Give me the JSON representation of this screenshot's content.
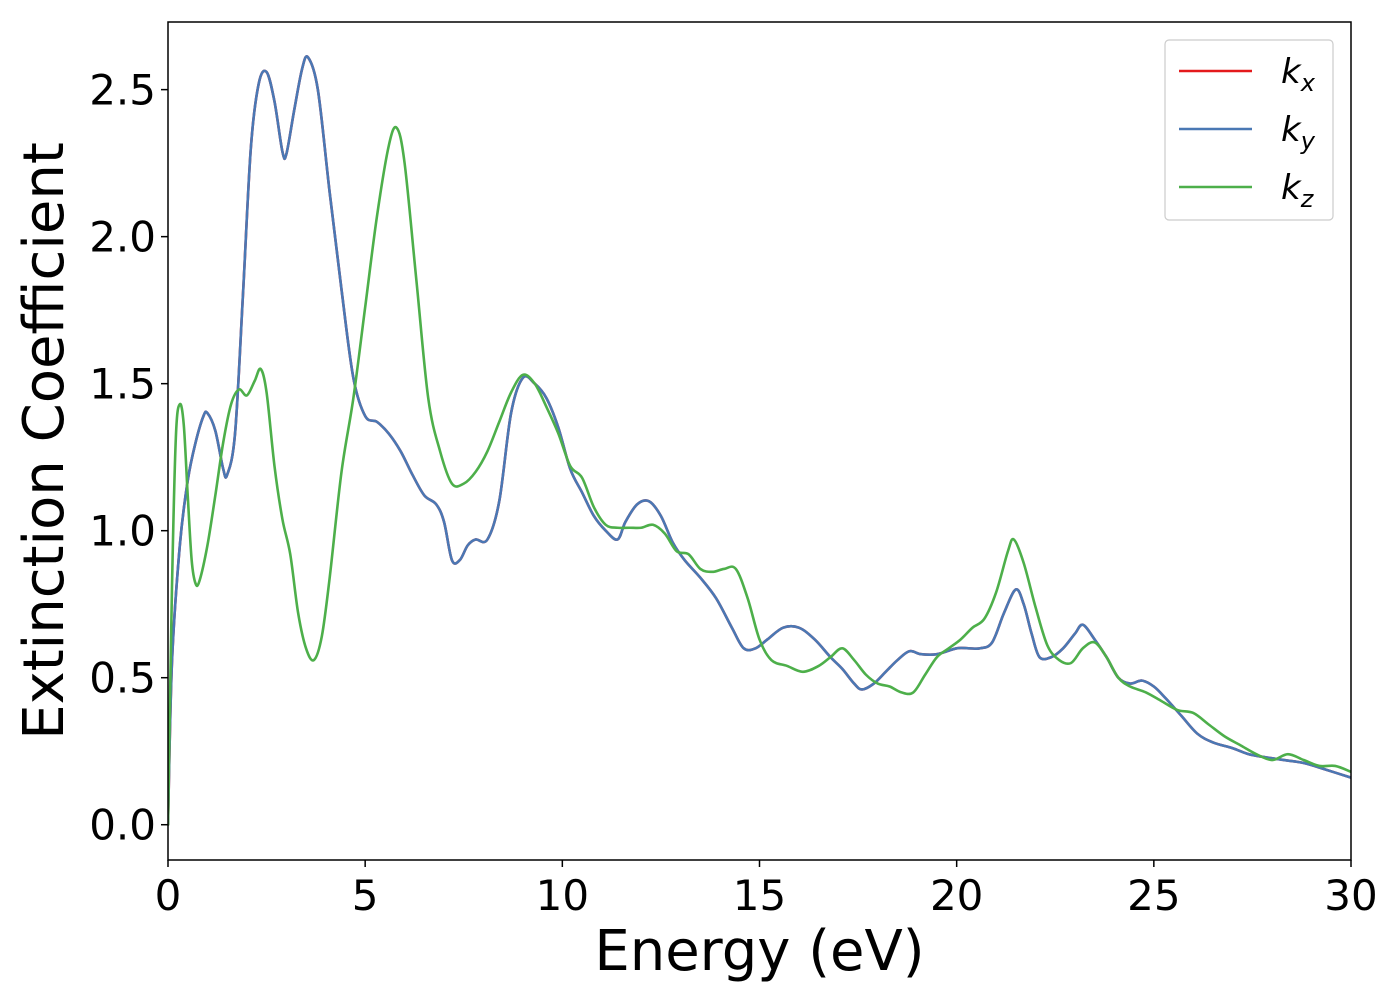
{
  "chart_data": {
    "type": "line",
    "title": "",
    "xlabel": "Energy (eV)",
    "ylabel": "Extinction Coefficient",
    "xlim": [
      0,
      30
    ],
    "ylim": [
      -0.12,
      2.73
    ],
    "xticks": [
      0,
      5,
      10,
      15,
      20,
      25,
      30
    ],
    "xtick_labels": [
      "0",
      "5",
      "10",
      "15",
      "20",
      "25",
      "30"
    ],
    "yticks": [
      0.0,
      0.5,
      1.0,
      1.5,
      2.0,
      2.5
    ],
    "ytick_labels": [
      "0.0",
      "0.5",
      "1.0",
      "1.5",
      "2.0",
      "2.5"
    ],
    "grid": false,
    "legend_position": "top-right",
    "series": [
      {
        "name": "k_x",
        "legend_base": "k",
        "legend_sub": "x",
        "color": "#e41a1c",
        "points": [
          [
            0,
            0
          ],
          [
            0.1,
            0.55
          ],
          [
            0.3,
            0.95
          ],
          [
            0.5,
            1.17
          ],
          [
            0.7,
            1.3
          ],
          [
            0.9,
            1.39
          ],
          [
            1.0,
            1.4
          ],
          [
            1.2,
            1.34
          ],
          [
            1.4,
            1.21
          ],
          [
            1.5,
            1.19
          ],
          [
            1.7,
            1.33
          ],
          [
            1.9,
            1.8
          ],
          [
            2.1,
            2.3
          ],
          [
            2.3,
            2.52
          ],
          [
            2.5,
            2.56
          ],
          [
            2.7,
            2.46
          ],
          [
            2.9,
            2.29
          ],
          [
            3.0,
            2.28
          ],
          [
            3.2,
            2.43
          ],
          [
            3.4,
            2.57
          ],
          [
            3.55,
            2.61
          ],
          [
            3.8,
            2.5
          ],
          [
            4.1,
            2.15
          ],
          [
            4.4,
            1.82
          ],
          [
            4.7,
            1.52
          ],
          [
            5.0,
            1.39
          ],
          [
            5.3,
            1.37
          ],
          [
            5.6,
            1.33
          ],
          [
            5.9,
            1.27
          ],
          [
            6.2,
            1.19
          ],
          [
            6.5,
            1.12
          ],
          [
            6.8,
            1.09
          ],
          [
            7.0,
            1.03
          ],
          [
            7.2,
            0.9
          ],
          [
            7.4,
            0.9
          ],
          [
            7.6,
            0.95
          ],
          [
            7.8,
            0.97
          ],
          [
            8.1,
            0.97
          ],
          [
            8.4,
            1.1
          ],
          [
            8.7,
            1.4
          ],
          [
            9.0,
            1.52
          ],
          [
            9.3,
            1.5
          ],
          [
            9.6,
            1.45
          ],
          [
            9.9,
            1.35
          ],
          [
            10.2,
            1.21
          ],
          [
            10.5,
            1.13
          ],
          [
            10.8,
            1.05
          ],
          [
            11.1,
            1.0
          ],
          [
            11.4,
            0.97
          ],
          [
            11.6,
            1.03
          ],
          [
            11.9,
            1.09
          ],
          [
            12.2,
            1.1
          ],
          [
            12.5,
            1.05
          ],
          [
            12.8,
            0.96
          ],
          [
            13.1,
            0.9
          ],
          [
            13.5,
            0.84
          ],
          [
            13.9,
            0.77
          ],
          [
            14.3,
            0.67
          ],
          [
            14.6,
            0.6
          ],
          [
            14.9,
            0.6
          ],
          [
            15.2,
            0.63
          ],
          [
            15.6,
            0.67
          ],
          [
            16.0,
            0.67
          ],
          [
            16.4,
            0.63
          ],
          [
            16.8,
            0.57
          ],
          [
            17.1,
            0.53
          ],
          [
            17.4,
            0.48
          ],
          [
            17.6,
            0.46
          ],
          [
            17.9,
            0.48
          ],
          [
            18.2,
            0.52
          ],
          [
            18.5,
            0.56
          ],
          [
            18.8,
            0.59
          ],
          [
            19.1,
            0.58
          ],
          [
            19.5,
            0.58
          ],
          [
            20.0,
            0.6
          ],
          [
            20.3,
            0.6
          ],
          [
            20.6,
            0.6
          ],
          [
            20.9,
            0.62
          ],
          [
            21.2,
            0.72
          ],
          [
            21.5,
            0.8
          ],
          [
            21.7,
            0.75
          ],
          [
            21.9,
            0.65
          ],
          [
            22.1,
            0.57
          ],
          [
            22.4,
            0.57
          ],
          [
            22.7,
            0.6
          ],
          [
            23.0,
            0.65
          ],
          [
            23.2,
            0.68
          ],
          [
            23.5,
            0.63
          ],
          [
            23.8,
            0.57
          ],
          [
            24.1,
            0.5
          ],
          [
            24.4,
            0.48
          ],
          [
            24.7,
            0.49
          ],
          [
            25.0,
            0.47
          ],
          [
            25.3,
            0.43
          ],
          [
            25.7,
            0.37
          ],
          [
            26.1,
            0.31
          ],
          [
            26.5,
            0.28
          ],
          [
            27.0,
            0.26
          ],
          [
            27.4,
            0.24
          ],
          [
            27.8,
            0.23
          ],
          [
            28.3,
            0.22
          ],
          [
            28.8,
            0.21
          ],
          [
            29.3,
            0.19
          ],
          [
            30.0,
            0.16
          ]
        ]
      },
      {
        "name": "k_y",
        "legend_base": "k",
        "legend_sub": "y",
        "color": "#4a78b4",
        "points": [
          [
            0,
            0
          ],
          [
            0.1,
            0.55
          ],
          [
            0.3,
            0.95
          ],
          [
            0.5,
            1.17
          ],
          [
            0.7,
            1.3
          ],
          [
            0.9,
            1.39
          ],
          [
            1.0,
            1.4
          ],
          [
            1.2,
            1.34
          ],
          [
            1.4,
            1.21
          ],
          [
            1.5,
            1.19
          ],
          [
            1.7,
            1.33
          ],
          [
            1.9,
            1.8
          ],
          [
            2.1,
            2.3
          ],
          [
            2.3,
            2.52
          ],
          [
            2.5,
            2.56
          ],
          [
            2.7,
            2.46
          ],
          [
            2.9,
            2.29
          ],
          [
            3.0,
            2.28
          ],
          [
            3.2,
            2.43
          ],
          [
            3.4,
            2.57
          ],
          [
            3.55,
            2.61
          ],
          [
            3.8,
            2.5
          ],
          [
            4.1,
            2.15
          ],
          [
            4.4,
            1.82
          ],
          [
            4.7,
            1.52
          ],
          [
            5.0,
            1.39
          ],
          [
            5.3,
            1.37
          ],
          [
            5.6,
            1.33
          ],
          [
            5.9,
            1.27
          ],
          [
            6.2,
            1.19
          ],
          [
            6.5,
            1.12
          ],
          [
            6.8,
            1.09
          ],
          [
            7.0,
            1.03
          ],
          [
            7.2,
            0.9
          ],
          [
            7.4,
            0.9
          ],
          [
            7.6,
            0.95
          ],
          [
            7.8,
            0.97
          ],
          [
            8.1,
            0.97
          ],
          [
            8.4,
            1.1
          ],
          [
            8.7,
            1.4
          ],
          [
            9.0,
            1.52
          ],
          [
            9.3,
            1.5
          ],
          [
            9.6,
            1.45
          ],
          [
            9.9,
            1.35
          ],
          [
            10.2,
            1.21
          ],
          [
            10.5,
            1.13
          ],
          [
            10.8,
            1.05
          ],
          [
            11.1,
            1.0
          ],
          [
            11.4,
            0.97
          ],
          [
            11.6,
            1.03
          ],
          [
            11.9,
            1.09
          ],
          [
            12.2,
            1.1
          ],
          [
            12.5,
            1.05
          ],
          [
            12.8,
            0.96
          ],
          [
            13.1,
            0.9
          ],
          [
            13.5,
            0.84
          ],
          [
            13.9,
            0.77
          ],
          [
            14.3,
            0.67
          ],
          [
            14.6,
            0.6
          ],
          [
            14.9,
            0.6
          ],
          [
            15.2,
            0.63
          ],
          [
            15.6,
            0.67
          ],
          [
            16.0,
            0.67
          ],
          [
            16.4,
            0.63
          ],
          [
            16.8,
            0.57
          ],
          [
            17.1,
            0.53
          ],
          [
            17.4,
            0.48
          ],
          [
            17.6,
            0.46
          ],
          [
            17.9,
            0.48
          ],
          [
            18.2,
            0.52
          ],
          [
            18.5,
            0.56
          ],
          [
            18.8,
            0.59
          ],
          [
            19.1,
            0.58
          ],
          [
            19.5,
            0.58
          ],
          [
            20.0,
            0.6
          ],
          [
            20.3,
            0.6
          ],
          [
            20.6,
            0.6
          ],
          [
            20.9,
            0.62
          ],
          [
            21.2,
            0.72
          ],
          [
            21.5,
            0.8
          ],
          [
            21.7,
            0.75
          ],
          [
            21.9,
            0.65
          ],
          [
            22.1,
            0.57
          ],
          [
            22.4,
            0.57
          ],
          [
            22.7,
            0.6
          ],
          [
            23.0,
            0.65
          ],
          [
            23.2,
            0.68
          ],
          [
            23.5,
            0.63
          ],
          [
            23.8,
            0.57
          ],
          [
            24.1,
            0.5
          ],
          [
            24.4,
            0.48
          ],
          [
            24.7,
            0.49
          ],
          [
            25.0,
            0.47
          ],
          [
            25.3,
            0.43
          ],
          [
            25.7,
            0.37
          ],
          [
            26.1,
            0.31
          ],
          [
            26.5,
            0.28
          ],
          [
            27.0,
            0.26
          ],
          [
            27.4,
            0.24
          ],
          [
            27.8,
            0.23
          ],
          [
            28.3,
            0.22
          ],
          [
            28.8,
            0.21
          ],
          [
            29.3,
            0.19
          ],
          [
            30.0,
            0.16
          ]
        ]
      },
      {
        "name": "k_z",
        "legend_base": "k",
        "legend_sub": "z",
        "color": "#4daf4a",
        "points": [
          [
            0,
            0
          ],
          [
            0.1,
            0.8
          ],
          [
            0.2,
            1.32
          ],
          [
            0.3,
            1.43
          ],
          [
            0.4,
            1.36
          ],
          [
            0.5,
            1.12
          ],
          [
            0.6,
            0.9
          ],
          [
            0.7,
            0.82
          ],
          [
            0.8,
            0.83
          ],
          [
            1.0,
            0.95
          ],
          [
            1.2,
            1.12
          ],
          [
            1.4,
            1.3
          ],
          [
            1.6,
            1.43
          ],
          [
            1.8,
            1.48
          ],
          [
            2.0,
            1.46
          ],
          [
            2.2,
            1.51
          ],
          [
            2.35,
            1.55
          ],
          [
            2.5,
            1.47
          ],
          [
            2.7,
            1.22
          ],
          [
            2.9,
            1.04
          ],
          [
            3.1,
            0.92
          ],
          [
            3.3,
            0.72
          ],
          [
            3.5,
            0.6
          ],
          [
            3.7,
            0.56
          ],
          [
            3.9,
            0.64
          ],
          [
            4.1,
            0.84
          ],
          [
            4.4,
            1.2
          ],
          [
            4.7,
            1.45
          ],
          [
            5.0,
            1.76
          ],
          [
            5.3,
            2.07
          ],
          [
            5.6,
            2.31
          ],
          [
            5.8,
            2.37
          ],
          [
            6.0,
            2.25
          ],
          [
            6.3,
            1.85
          ],
          [
            6.6,
            1.45
          ],
          [
            6.9,
            1.27
          ],
          [
            7.2,
            1.16
          ],
          [
            7.5,
            1.16
          ],
          [
            7.8,
            1.2
          ],
          [
            8.1,
            1.27
          ],
          [
            8.4,
            1.37
          ],
          [
            8.7,
            1.47
          ],
          [
            9.0,
            1.53
          ],
          [
            9.3,
            1.5
          ],
          [
            9.6,
            1.42
          ],
          [
            9.9,
            1.33
          ],
          [
            10.2,
            1.22
          ],
          [
            10.5,
            1.18
          ],
          [
            10.8,
            1.08
          ],
          [
            11.1,
            1.02
          ],
          [
            11.4,
            1.01
          ],
          [
            11.7,
            1.01
          ],
          [
            12.0,
            1.01
          ],
          [
            12.3,
            1.02
          ],
          [
            12.6,
            0.99
          ],
          [
            12.9,
            0.93
          ],
          [
            13.2,
            0.92
          ],
          [
            13.5,
            0.87
          ],
          [
            13.8,
            0.86
          ],
          [
            14.1,
            0.87
          ],
          [
            14.4,
            0.87
          ],
          [
            14.7,
            0.77
          ],
          [
            15.0,
            0.63
          ],
          [
            15.3,
            0.56
          ],
          [
            15.7,
            0.54
          ],
          [
            16.1,
            0.52
          ],
          [
            16.5,
            0.54
          ],
          [
            16.8,
            0.57
          ],
          [
            17.1,
            0.6
          ],
          [
            17.4,
            0.56
          ],
          [
            17.7,
            0.51
          ],
          [
            18.0,
            0.48
          ],
          [
            18.3,
            0.47
          ],
          [
            18.6,
            0.45
          ],
          [
            18.9,
            0.45
          ],
          [
            19.2,
            0.51
          ],
          [
            19.5,
            0.57
          ],
          [
            19.8,
            0.6
          ],
          [
            20.1,
            0.63
          ],
          [
            20.4,
            0.67
          ],
          [
            20.7,
            0.7
          ],
          [
            21.0,
            0.79
          ],
          [
            21.3,
            0.93
          ],
          [
            21.45,
            0.97
          ],
          [
            21.7,
            0.89
          ],
          [
            22.0,
            0.74
          ],
          [
            22.3,
            0.61
          ],
          [
            22.6,
            0.56
          ],
          [
            22.9,
            0.55
          ],
          [
            23.2,
            0.6
          ],
          [
            23.5,
            0.62
          ],
          [
            23.8,
            0.57
          ],
          [
            24.1,
            0.5
          ],
          [
            24.4,
            0.47
          ],
          [
            24.8,
            0.45
          ],
          [
            25.2,
            0.42
          ],
          [
            25.6,
            0.39
          ],
          [
            26.0,
            0.38
          ],
          [
            26.4,
            0.34
          ],
          [
            26.8,
            0.3
          ],
          [
            27.2,
            0.27
          ],
          [
            27.6,
            0.24
          ],
          [
            28.0,
            0.22
          ],
          [
            28.4,
            0.24
          ],
          [
            28.8,
            0.22
          ],
          [
            29.2,
            0.2
          ],
          [
            29.6,
            0.2
          ],
          [
            30.0,
            0.18
          ]
        ]
      }
    ]
  }
}
